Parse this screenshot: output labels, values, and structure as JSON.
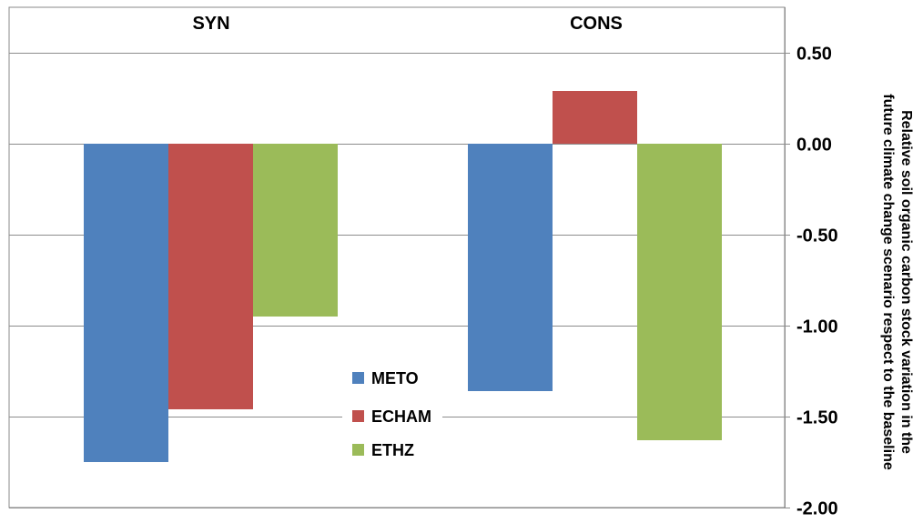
{
  "chart_data": {
    "type": "bar",
    "categories": [
      "SYN",
      "CONS"
    ],
    "series": [
      {
        "name": "METO",
        "values": [
          -1.75,
          -1.36
        ],
        "color": "#4f81bd"
      },
      {
        "name": "ECHAM",
        "values": [
          -1.46,
          0.29
        ],
        "color": "#c0504d"
      },
      {
        "name": "ETHZ",
        "values": [
          -0.95,
          -1.63
        ],
        "color": "#9bbb59"
      }
    ],
    "y_ticks": [
      "0.50",
      "0.00",
      "-0.50",
      "-1.00",
      "-1.50",
      "-2.00"
    ],
    "ylim": [
      -2.0,
      0.5
    ],
    "ylabel_line1": "Relative soil organic carbon stock variation in the",
    "ylabel_line2": "future climate change scenario respect to the baseline",
    "xlabel": "",
    "title": "",
    "axis_position": "right",
    "category_labels_position": "top",
    "grid": true,
    "legend_position": "center-bottom"
  }
}
